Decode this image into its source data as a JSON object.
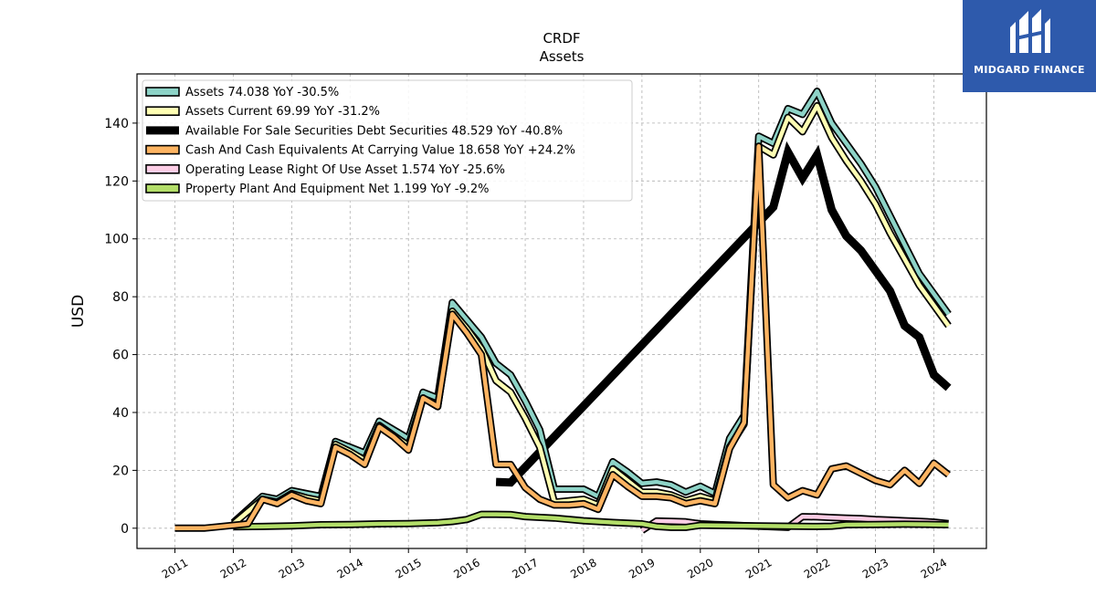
{
  "logo": {
    "text": "MIDGARD FINANCE",
    "icon": "midgard-logo-icon",
    "bg_color": "#2e5aac"
  },
  "chart_data": {
    "type": "line",
    "title": "CRDF",
    "subtitle": "Assets",
    "ylabel": "USD",
    "xlabel": "",
    "ylim": [
      -7,
      157
    ],
    "xlim": [
      2010.35,
      2024.9
    ],
    "yticks": [
      0,
      20,
      40,
      60,
      80,
      100,
      120,
      140
    ],
    "xticks": [
      "2011",
      "2012",
      "2013",
      "2014",
      "2015",
      "2016",
      "2017",
      "2018",
      "2019",
      "2020",
      "2021",
      "2022",
      "2023",
      "2024"
    ],
    "grid": true,
    "legend_position": "top-left",
    "series": [
      {
        "name": "Assets",
        "legend_label": "Assets  74.038 YoY -30.5%",
        "color": "#8dd3c7",
        "x": [
          2012.0,
          2012.5,
          2012.75,
          2013.0,
          2013.25,
          2013.5,
          2013.75,
          2014.0,
          2014.25,
          2014.5,
          2014.75,
          2015.0,
          2015.25,
          2015.5,
          2015.75,
          2016.0,
          2016.25,
          2016.5,
          2016.75,
          2017.0,
          2017.25,
          2017.5,
          2017.75,
          2018.0,
          2018.25,
          2018.5,
          2018.75,
          2019.0,
          2019.25,
          2019.5,
          2019.75,
          2020.0,
          2020.25,
          2020.5,
          2020.75,
          2021.0,
          2021.25,
          2021.5,
          2021.75,
          2022.0,
          2022.25,
          2022.5,
          2022.75,
          2023.0,
          2023.25,
          2023.5,
          2023.75,
          2024.0,
          2024.25
        ],
        "y": [
          2.0,
          11.0,
          10.0,
          13.0,
          12.0,
          11.0,
          30.0,
          28.0,
          26.0,
          37.0,
          34.0,
          31.0,
          47.0,
          45.0,
          78.0,
          72.0,
          66.0,
          57.0,
          53.0,
          44.0,
          34.0,
          13.5,
          13.5,
          13.5,
          11.0,
          23.0,
          19.5,
          15.5,
          16.0,
          15.0,
          12.5,
          14.5,
          12.0,
          31.0,
          39.0,
          135.5,
          133.0,
          145.0,
          143.0,
          151.0,
          140.0,
          133.0,
          126.0,
          118.0,
          108.0,
          98.0,
          88.0,
          81.0,
          74.0
        ]
      },
      {
        "name": "Assets Current",
        "legend_label": "Assets Current  69.99 YoY -31.2%",
        "color": "#ffffb3",
        "x": [
          2012.0,
          2012.5,
          2012.75,
          2013.0,
          2013.25,
          2013.5,
          2013.75,
          2014.0,
          2014.25,
          2014.5,
          2014.75,
          2015.0,
          2015.25,
          2015.5,
          2015.75,
          2016.0,
          2016.25,
          2016.5,
          2016.75,
          2017.0,
          2017.25,
          2017.5,
          2017.75,
          2018.0,
          2018.25,
          2018.5,
          2018.75,
          2019.0,
          2019.25,
          2019.5,
          2019.75,
          2020.0,
          2020.25,
          2020.5,
          2020.75,
          2021.0,
          2021.25,
          2021.5,
          2021.75,
          2022.0,
          2022.25,
          2022.5,
          2022.75,
          2023.0,
          2023.25,
          2023.5,
          2023.75,
          2024.0,
          2024.25
        ],
        "y": [
          1.5,
          10.0,
          9.0,
          12.0,
          10.5,
          9.5,
          29.0,
          26.5,
          23.5,
          35.5,
          32.0,
          28.5,
          45.0,
          42.0,
          75.0,
          69.0,
          62.0,
          51.0,
          47.0,
          38.0,
          28.0,
          9.0,
          9.5,
          10.0,
          8.0,
          20.5,
          16.5,
          12.5,
          12.5,
          11.5,
          9.5,
          11.0,
          9.5,
          28.0,
          36.0,
          132.0,
          129.0,
          142.0,
          137.0,
          146.0,
          135.0,
          127.0,
          120.0,
          112.0,
          102.0,
          93.0,
          84.0,
          77.0,
          70.0
        ]
      },
      {
        "name": "Available For Sale Securities Debt Securities",
        "legend_label": "Available For Sale Securities Debt Securities  48.529 YoY -40.8%",
        "color": "#000000",
        "x": [
          2016.5,
          2016.75,
          2021.25,
          2021.5,
          2021.75,
          2022.0,
          2022.25,
          2022.5,
          2022.75,
          2023.0,
          2023.25,
          2023.5,
          2023.75,
          2024.0,
          2024.25
        ],
        "y": [
          16.0,
          15.8,
          111.0,
          130.0,
          121.0,
          129.0,
          110.0,
          101.0,
          96.0,
          89.0,
          82.0,
          70.0,
          66.0,
          53.0,
          48.5
        ]
      },
      {
        "name": "Cash And Cash Equivalents At Carrying Value",
        "legend_label": "Cash And Cash Equivalents At Carrying Value  18.658 YoY +24.2%",
        "color": "#fdb462",
        "x": [
          2011.0,
          2011.5,
          2011.75,
          2012.0,
          2012.25,
          2012.5,
          2012.75,
          2013.0,
          2013.25,
          2013.5,
          2013.75,
          2014.0,
          2014.25,
          2014.5,
          2014.75,
          2015.0,
          2015.25,
          2015.5,
          2015.75,
          2016.0,
          2016.25,
          2016.5,
          2016.75,
          2017.0,
          2017.25,
          2017.5,
          2017.75,
          2018.0,
          2018.25,
          2018.5,
          2018.75,
          2019.0,
          2019.25,
          2019.5,
          2019.75,
          2020.0,
          2020.25,
          2020.5,
          2020.75,
          2021.0,
          2021.25,
          2021.5,
          2021.75,
          2022.0,
          2022.25,
          2022.5,
          2022.75,
          2023.0,
          2023.25,
          2023.5,
          2023.75,
          2024.0,
          2024.25
        ],
        "y": [
          0.0,
          0.0,
          0.5,
          1.0,
          1.5,
          10.0,
          8.5,
          11.5,
          9.5,
          8.5,
          28.0,
          25.5,
          22.0,
          35.0,
          31.5,
          27.0,
          45.0,
          42.0,
          74.0,
          67.5,
          60.0,
          22.0,
          22.0,
          14.0,
          10.0,
          8.0,
          8.0,
          8.5,
          6.5,
          18.5,
          14.5,
          11.0,
          11.0,
          10.5,
          8.5,
          9.5,
          8.5,
          27.5,
          36.5,
          132.0,
          15.0,
          10.5,
          13.0,
          11.5,
          20.5,
          21.5,
          19.0,
          16.5,
          15.0,
          20.0,
          15.5,
          22.5,
          18.5
        ]
      },
      {
        "name": "Operating Lease Right Of Use Asset",
        "legend_label": "Operating Lease Right Of Use Asset  1.574 YoY -25.6%",
        "color": "#fccde5",
        "x": [
          2019.0,
          2019.25,
          2019.5,
          2019.75,
          2020.0,
          2020.25,
          2020.5,
          2020.75,
          2021.0,
          2021.25,
          2021.5,
          2021.75,
          2022.0,
          2022.25,
          2022.5,
          2022.75,
          2023.0,
          2023.25,
          2023.5,
          2023.75,
          2024.0,
          2024.25
        ],
        "y": [
          -0.8,
          2.5,
          2.4,
          2.2,
          1.5,
          1.3,
          1.1,
          0.9,
          0.7,
          0.5,
          0.3,
          4.0,
          3.9,
          3.7,
          3.5,
          3.3,
          3.0,
          2.8,
          2.6,
          2.4,
          2.1,
          1.6
        ]
      },
      {
        "name": "Property Plant And Equipment Net",
        "legend_label": "Property Plant And Equipment Net  1.199 YoY -9.2%",
        "color": "#b3de69",
        "x": [
          2012.0,
          2012.5,
          2013.0,
          2013.5,
          2014.0,
          2014.5,
          2015.0,
          2015.5,
          2015.75,
          2016.0,
          2016.25,
          2016.5,
          2016.75,
          2017.0,
          2017.5,
          2018.0,
          2018.5,
          2019.0,
          2019.25,
          2019.5,
          2019.75,
          2020.0,
          2020.5,
          2021.0,
          2021.5,
          2022.0,
          2022.25,
          2022.5,
          2023.0,
          2023.5,
          2024.0,
          2024.25
        ],
        "y": [
          0.5,
          0.6,
          0.8,
          1.2,
          1.3,
          1.5,
          1.6,
          1.9,
          2.3,
          3.0,
          4.8,
          4.8,
          4.7,
          4.0,
          3.5,
          2.6,
          2.0,
          1.5,
          0.6,
          0.3,
          0.3,
          1.0,
          0.9,
          0.8,
          0.7,
          0.6,
          0.7,
          1.2,
          1.3,
          1.4,
          1.3,
          1.2
        ]
      }
    ]
  }
}
